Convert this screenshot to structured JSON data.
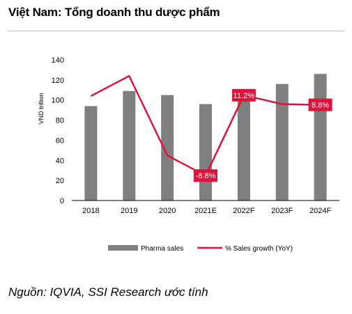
{
  "title": "Việt Nam: Tổng doanh thu dược phẩm",
  "source": "Nguồn: IQVIA, SSI Research ước tính",
  "colors": {
    "bar": "#7f7f7f",
    "line": "#dc143c",
    "label_bg": "#dc143c",
    "label_text": "#ffffff"
  },
  "chart_data": {
    "type": "bar",
    "categories": [
      "2018",
      "2019",
      "2020",
      "2021E",
      "2022F",
      "2023F",
      "2024F"
    ],
    "series": [
      {
        "name": "Pharma sales",
        "type": "bar",
        "values": [
          94,
          109,
          105,
          96,
          107,
          116,
          126
        ]
      },
      {
        "name": "% Sales growth (YoY)",
        "type": "line",
        "axis": "secondary",
        "values": [
          11.0,
          16.0,
          -3.8,
          -8.8,
          11.2,
          9.0,
          8.8
        ]
      }
    ],
    "data_labels": [
      {
        "series": 1,
        "index": 3,
        "text": "-8.8%"
      },
      {
        "series": 1,
        "index": 4,
        "text": "11.2%"
      },
      {
        "series": 1,
        "index": 6,
        "text": "8.8%"
      }
    ],
    "ylabel": "VND trillion",
    "ylim": [
      0,
      140
    ],
    "yticks": [
      "0",
      "20",
      "40",
      "60",
      "80",
      "100",
      "120",
      "140"
    ],
    "y2lim": [
      -15,
      20
    ],
    "legend": "bottom"
  }
}
